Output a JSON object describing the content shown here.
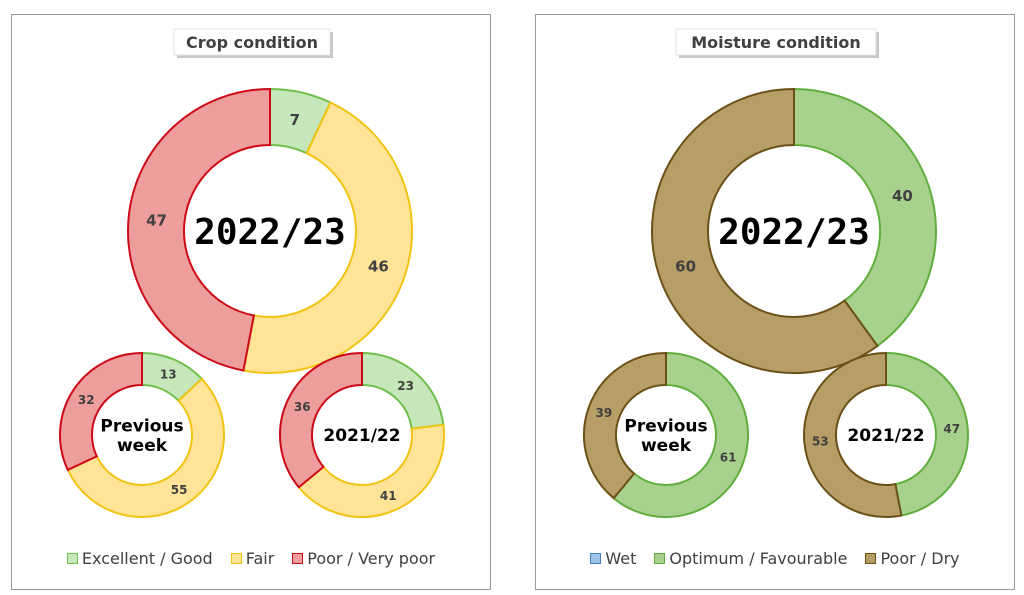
{
  "chart_data": [
    {
      "type": "donut",
      "title": "Crop condition",
      "categories": [
        "Excellent / Good",
        "Fair",
        "Poor / Very poor"
      ],
      "colors": {
        "fill": [
          "#c6e7b9",
          "#ffe498",
          "#ee9d9d"
        ],
        "stroke": [
          "#6fbf4a",
          "#f2c311",
          "#cc0a17"
        ]
      },
      "rings": [
        {
          "label": "2022/23",
          "values": [
            7,
            46,
            47
          ],
          "labels": [
            "7",
            "46",
            "47"
          ]
        },
        {
          "label": "Previous week",
          "values": [
            13,
            55,
            32
          ],
          "labels": [
            "13",
            "55",
            "32"
          ]
        },
        {
          "label": "2021/22",
          "values": [
            23,
            41,
            36
          ],
          "labels": [
            "23",
            "41",
            "36"
          ]
        }
      ],
      "legend": "bottom"
    },
    {
      "type": "donut",
      "title": "Moisture condition",
      "categories": [
        "Wet",
        "Optimum / Favourable",
        "Poor / Dry"
      ],
      "colors": {
        "fill": [
          "#9dc3e6",
          "#a9d18e",
          "#b69e66"
        ],
        "stroke": [
          "#3f7fbf",
          "#5fae3e",
          "#6b5118"
        ]
      },
      "rings": [
        {
          "label": "2022/23",
          "values": [
            0,
            40,
            60
          ],
          "labels": [
            "-",
            "40",
            "60"
          ]
        },
        {
          "label": "Previous week",
          "values": [
            0,
            61,
            39
          ],
          "labels": [
            "",
            "61",
            "39"
          ]
        },
        {
          "label": "2021/22",
          "values": [
            0,
            47,
            53
          ],
          "labels": [
            "-",
            "47",
            "53"
          ]
        }
      ],
      "legend": "bottom"
    }
  ]
}
